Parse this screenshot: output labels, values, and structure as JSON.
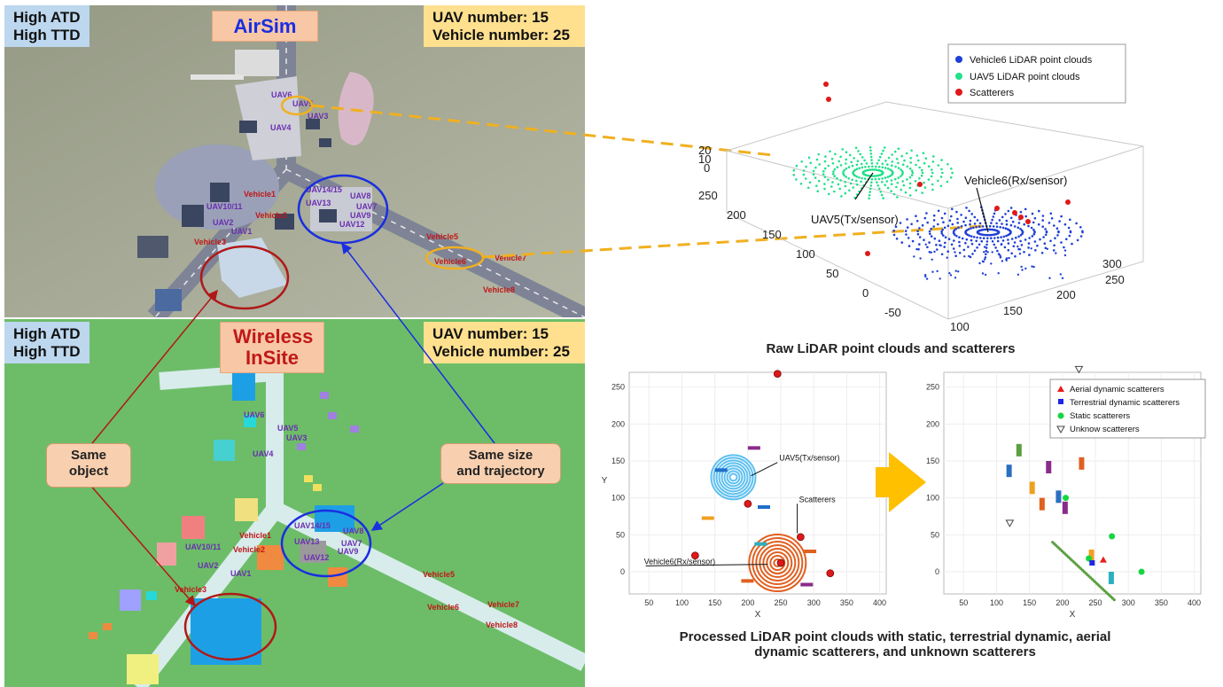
{
  "airsim": {
    "title": "AirSim",
    "atd_line1": "High ATD",
    "atd_line2": "High TTD",
    "uav_number": "UAV number: 15",
    "vehicle_number": "Vehicle number: 25",
    "uav_labels": [
      "UAV6",
      "UAV5",
      "UAV3",
      "UAV4",
      "UAV14/15",
      "UAV8",
      "UAV13",
      "UAV7",
      "UAV9",
      "UAV12",
      "UAV10/11",
      "UAV2",
      "UAV1"
    ],
    "vehicle_labels": [
      "Vehicle1",
      "Vehicle2",
      "Vehicle3",
      "Vehicle5",
      "Vehicle6",
      "Vehicle7",
      "Vehicle8"
    ]
  },
  "insite": {
    "title_line1": "Wireless",
    "title_line2": "InSite",
    "atd_line1": "High ATD",
    "atd_line2": "High TTD",
    "uav_number": "UAV number: 15",
    "vehicle_number": "Vehicle number: 25",
    "uav_labels": [
      "UAV6",
      "UAV5",
      "UAV3",
      "UAV4",
      "UAV14/15",
      "UAV8",
      "UAV13",
      "UAV7",
      "UAV9",
      "UAV12",
      "UAV10/11",
      "UAV2",
      "UAV1"
    ],
    "vehicle_labels": [
      "Vehicle1",
      "Vehicle2",
      "Vehicle3",
      "Vehicle5",
      "Vehicle6",
      "Vehicle7",
      "Vehicle8"
    ]
  },
  "callouts": {
    "same_object_line1": "Same",
    "same_object_line2": "object",
    "same_size_line1": "Same size",
    "same_size_line2": "and trajectory"
  },
  "captions": {
    "raw": "Raw LiDAR point clouds and scatterers",
    "processed_line1": "Processed LiDAR point clouds with static, terrestrial dynamic, aerial",
    "processed_line2": "dynamic scatterers, and unknown scatterers"
  },
  "chart_data": [
    {
      "type": "scatter",
      "title": "",
      "legend": [
        "Vehicle6 LiDAR point clouds",
        "UAV5 LiDAR point clouds",
        "Scatterers"
      ],
      "legend_placement": "top-right",
      "annotations": [
        "Vehicle6(Rx/sensor)",
        "UAV5(Tx/sensor)"
      ],
      "z_ticks": [
        "20",
        "10",
        "0"
      ],
      "y_ticks": [
        "250",
        "200",
        "150",
        "100",
        "50",
        "0",
        "-50"
      ],
      "x_ticks": [
        "100",
        "150",
        "200",
        "250",
        "300"
      ],
      "colors": {
        "vehicle": "#1f3fd6",
        "uav": "#22e08a",
        "scatterers": "#e01818"
      }
    },
    {
      "type": "scatter",
      "xlabel": "X",
      "ylabel": "Y",
      "x_ticks": [
        "50",
        "100",
        "150",
        "200",
        "250",
        "300",
        "350",
        "400"
      ],
      "y_ticks": [
        "250",
        "200",
        "150",
        "100",
        "50",
        "0"
      ],
      "xlim": [
        20,
        410
      ],
      "ylim": [
        -30,
        270
      ],
      "annotations": [
        "UAV5(Tx/sensor)",
        "Scatterers",
        "Vehicle6(Rx/sensor)"
      ],
      "scatterers": [
        [
          245,
          268
        ],
        [
          120,
          22
        ],
        [
          200,
          92
        ],
        [
          325,
          -2
        ],
        [
          250,
          12
        ],
        [
          280,
          47
        ]
      ]
    },
    {
      "type": "scatter",
      "xlabel": "X",
      "ylabel": "",
      "x_ticks": [
        "50",
        "100",
        "150",
        "200",
        "250",
        "300",
        "350",
        "400"
      ],
      "y_ticks": [
        "250",
        "200",
        "150",
        "100",
        "50",
        "0"
      ],
      "xlim": [
        20,
        410
      ],
      "ylim": [
        -30,
        270
      ],
      "legend": [
        "Aerial dynamic scatterers",
        "Terrestrial dynamic scatterers",
        "Static scatterers",
        "Unknow scatterers"
      ],
      "legend_placement": "top-right",
      "colors": {
        "aerial": "#e81c1c",
        "terrestrial": "#1c28e8",
        "static": "#16d640",
        "unknown": "#444444"
      }
    }
  ]
}
